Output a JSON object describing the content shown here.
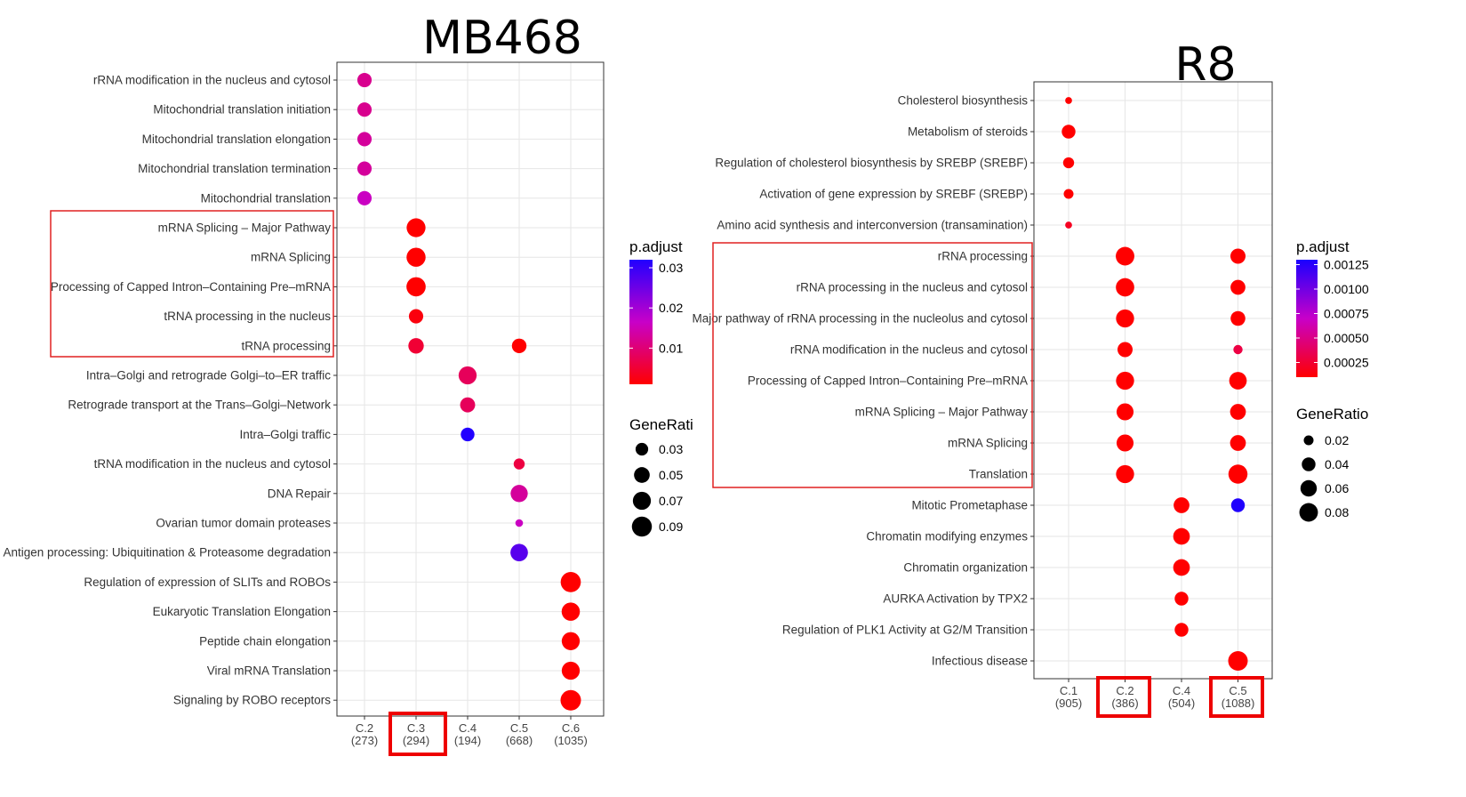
{
  "chart_data": [
    {
      "type": "scatter",
      "title": "MB468",
      "x_categories": [
        {
          "name": "C.2",
          "count": "(273)"
        },
        {
          "name": "C.3",
          "count": "(294)"
        },
        {
          "name": "C.4",
          "count": "(194)"
        },
        {
          "name": "C.5",
          "count": "(668)"
        },
        {
          "name": "C.6",
          "count": "(1035)"
        }
      ],
      "y_categories": [
        "rRNA modification in the nucleus and cytosol",
        "Mitochondrial translation initiation",
        "Mitochondrial translation elongation",
        "Mitochondrial translation termination",
        "Mitochondrial translation",
        "mRNA Splicing – Major Pathway",
        "mRNA Splicing",
        "Processing of Capped Intron–Containing Pre–mRNA",
        "tRNA processing in the nucleus",
        "tRNA processing",
        "Intra–Golgi and retrograde Golgi–to–ER traffic",
        "Retrograde transport at the Trans–Golgi–Network",
        "Intra–Golgi traffic",
        "tRNA modification in the nucleus and cytosol",
        "DNA Repair",
        "Ovarian tumor domain proteases",
        "Antigen processing: Ubiquitination & Proteasome degradation",
        "Regulation of expression of SLITs and ROBOs",
        "Eukaryotic Translation Elongation",
        "Peptide chain elongation",
        "Viral mRNA Translation",
        "Signaling by ROBO receptors"
      ],
      "points": [
        {
          "x": "C.2",
          "y": 0,
          "gene_ratio": 0.04,
          "p_adjust": 0.012
        },
        {
          "x": "C.2",
          "y": 1,
          "gene_ratio": 0.04,
          "p_adjust": 0.012
        },
        {
          "x": "C.2",
          "y": 2,
          "gene_ratio": 0.04,
          "p_adjust": 0.013
        },
        {
          "x": "C.2",
          "y": 3,
          "gene_ratio": 0.04,
          "p_adjust": 0.013
        },
        {
          "x": "C.2",
          "y": 4,
          "gene_ratio": 0.04,
          "p_adjust": 0.016
        },
        {
          "x": "C.3",
          "y": 5,
          "gene_ratio": 0.078,
          "p_adjust": 0.001
        },
        {
          "x": "C.3",
          "y": 6,
          "gene_ratio": 0.08,
          "p_adjust": 0.001
        },
        {
          "x": "C.3",
          "y": 7,
          "gene_ratio": 0.082,
          "p_adjust": 0.001
        },
        {
          "x": "C.3",
          "y": 8,
          "gene_ratio": 0.04,
          "p_adjust": 0.002
        },
        {
          "x": "C.3",
          "y": 9,
          "gene_ratio": 0.048,
          "p_adjust": 0.005
        },
        {
          "x": "C.5",
          "y": 9,
          "gene_ratio": 0.042,
          "p_adjust": 0.001
        },
        {
          "x": "C.4",
          "y": 10,
          "gene_ratio": 0.07,
          "p_adjust": 0.008
        },
        {
          "x": "C.4",
          "y": 11,
          "gene_ratio": 0.045,
          "p_adjust": 0.008
        },
        {
          "x": "C.4",
          "y": 12,
          "gene_ratio": 0.036,
          "p_adjust": 0.032
        },
        {
          "x": "C.5",
          "y": 13,
          "gene_ratio": 0.022,
          "p_adjust": 0.006
        },
        {
          "x": "C.5",
          "y": 14,
          "gene_ratio": 0.062,
          "p_adjust": 0.013
        },
        {
          "x": "C.5",
          "y": 15,
          "gene_ratio": 0.012,
          "p_adjust": 0.016
        },
        {
          "x": "C.5",
          "y": 16,
          "gene_ratio": 0.065,
          "p_adjust": 0.027
        },
        {
          "x": "C.6",
          "y": 17,
          "gene_ratio": 0.092,
          "p_adjust": 0.001
        },
        {
          "x": "C.6",
          "y": 18,
          "gene_ratio": 0.072,
          "p_adjust": 0.001
        },
        {
          "x": "C.6",
          "y": 19,
          "gene_ratio": 0.07,
          "p_adjust": 0.001
        },
        {
          "x": "C.6",
          "y": 20,
          "gene_ratio": 0.07,
          "p_adjust": 0.001
        },
        {
          "x": "C.6",
          "y": 21,
          "gene_ratio": 0.095,
          "p_adjust": 0.001
        }
      ],
      "highlight_rows": [
        5,
        9
      ],
      "highlight_x": "C.3",
      "legend_color": {
        "title": "p.adjust",
        "ticks": [
          "0.03",
          "0.02",
          "0.01"
        ],
        "tick_values": [
          0.03,
          0.02,
          0.01
        ],
        "range": [
          0.001,
          0.032
        ],
        "low_color": "#ff0000",
        "high_color": "#2200ff"
      },
      "legend_size": {
        "title": "GeneRati",
        "labels": [
          "0.03",
          "0.05",
          "0.07",
          "0.09"
        ],
        "values": [
          0.03,
          0.05,
          0.07,
          0.09
        ]
      }
    },
    {
      "type": "scatter",
      "title": "R8",
      "x_categories": [
        {
          "name": "C.1",
          "count": "(905)"
        },
        {
          "name": "C.2",
          "count": "(386)"
        },
        {
          "name": "C.4",
          "count": "(504)"
        },
        {
          "name": "C.5",
          "count": "(1088)"
        }
      ],
      "y_categories": [
        "Cholesterol biosynthesis",
        "Metabolism of steroids",
        "Regulation of cholesterol biosynthesis by SREBP (SREBF)",
        "Activation of gene expression by SREBF (SREBP)",
        "Amino acid synthesis and interconversion (transamination)",
        "rRNA processing",
        "rRNA processing in the nucleus and cytosol",
        "Major pathway of rRNA processing in the nucleolus and cytosol",
        "rRNA modification in the nucleus and cytosol",
        "Processing of Capped Intron–Containing Pre–mRNA",
        "mRNA Splicing – Major Pathway",
        "mRNA Splicing",
        "Translation",
        "Mitotic Prometaphase",
        "Chromatin modifying enzymes",
        "Chromatin organization",
        "AURKA Activation by TPX2",
        "Regulation of PLK1 Activity at G2/M Transition",
        "Infectious disease"
      ],
      "points": [
        {
          "x": "C.1",
          "y": 0,
          "gene_ratio": 0.012,
          "p_adjust": 0.0001
        },
        {
          "x": "C.1",
          "y": 1,
          "gene_ratio": 0.04,
          "p_adjust": 0.0001
        },
        {
          "x": "C.1",
          "y": 2,
          "gene_ratio": 0.025,
          "p_adjust": 0.0001
        },
        {
          "x": "C.1",
          "y": 3,
          "gene_ratio": 0.02,
          "p_adjust": 0.0001
        },
        {
          "x": "C.1",
          "y": 4,
          "gene_ratio": 0.012,
          "p_adjust": 0.0002
        },
        {
          "x": "C.2",
          "y": 5,
          "gene_ratio": 0.08,
          "p_adjust": 0.0001
        },
        {
          "x": "C.5",
          "y": 5,
          "gene_ratio": 0.05,
          "p_adjust": 0.0001
        },
        {
          "x": "C.2",
          "y": 6,
          "gene_ratio": 0.078,
          "p_adjust": 0.0001
        },
        {
          "x": "C.5",
          "y": 6,
          "gene_ratio": 0.048,
          "p_adjust": 0.0001
        },
        {
          "x": "C.2",
          "y": 7,
          "gene_ratio": 0.075,
          "p_adjust": 0.0001
        },
        {
          "x": "C.5",
          "y": 7,
          "gene_ratio": 0.047,
          "p_adjust": 0.0001
        },
        {
          "x": "C.2",
          "y": 8,
          "gene_ratio": 0.05,
          "p_adjust": 0.0001
        },
        {
          "x": "C.5",
          "y": 8,
          "gene_ratio": 0.018,
          "p_adjust": 0.0003
        },
        {
          "x": "C.2",
          "y": 9,
          "gene_ratio": 0.075,
          "p_adjust": 0.0001
        },
        {
          "x": "C.5",
          "y": 9,
          "gene_ratio": 0.07,
          "p_adjust": 0.0001
        },
        {
          "x": "C.2",
          "y": 10,
          "gene_ratio": 0.065,
          "p_adjust": 0.0001
        },
        {
          "x": "C.5",
          "y": 10,
          "gene_ratio": 0.055,
          "p_adjust": 0.0001
        },
        {
          "x": "C.2",
          "y": 11,
          "gene_ratio": 0.065,
          "p_adjust": 0.0001
        },
        {
          "x": "C.5",
          "y": 11,
          "gene_ratio": 0.055,
          "p_adjust": 0.0001
        },
        {
          "x": "C.2",
          "y": 12,
          "gene_ratio": 0.075,
          "p_adjust": 0.0001
        },
        {
          "x": "C.5",
          "y": 12,
          "gene_ratio": 0.085,
          "p_adjust": 0.0001
        },
        {
          "x": "C.4",
          "y": 13,
          "gene_ratio": 0.055,
          "p_adjust": 0.0001
        },
        {
          "x": "C.5",
          "y": 13,
          "gene_ratio": 0.04,
          "p_adjust": 0.00128
        },
        {
          "x": "C.4",
          "y": 14,
          "gene_ratio": 0.062,
          "p_adjust": 0.0001
        },
        {
          "x": "C.4",
          "y": 15,
          "gene_ratio": 0.062,
          "p_adjust": 0.0001
        },
        {
          "x": "C.4",
          "y": 16,
          "gene_ratio": 0.04,
          "p_adjust": 0.0001
        },
        {
          "x": "C.4",
          "y": 17,
          "gene_ratio": 0.04,
          "p_adjust": 0.0001
        },
        {
          "x": "C.5",
          "y": 18,
          "gene_ratio": 0.09,
          "p_adjust": 0.0001
        }
      ],
      "highlight_rows": [
        5,
        12
      ],
      "highlight_x": [
        "C.2",
        "C.5"
      ],
      "legend_color": {
        "title": "p.adjust",
        "ticks": [
          "0.00025",
          "0.00050",
          "0.00075",
          "0.00100",
          "0.00125"
        ],
        "tick_values": [
          0.00025,
          0.0005,
          0.00075,
          0.001,
          0.00125
        ],
        "range": [
          0.0001,
          0.0013
        ],
        "low_color": "#ff0000",
        "high_color": "#1a00ff"
      },
      "legend_size": {
        "title": "GeneRatio",
        "labels": [
          "0.02",
          "0.04",
          "0.06",
          "0.08"
        ],
        "values": [
          0.02,
          0.04,
          0.06,
          0.08
        ]
      }
    }
  ]
}
